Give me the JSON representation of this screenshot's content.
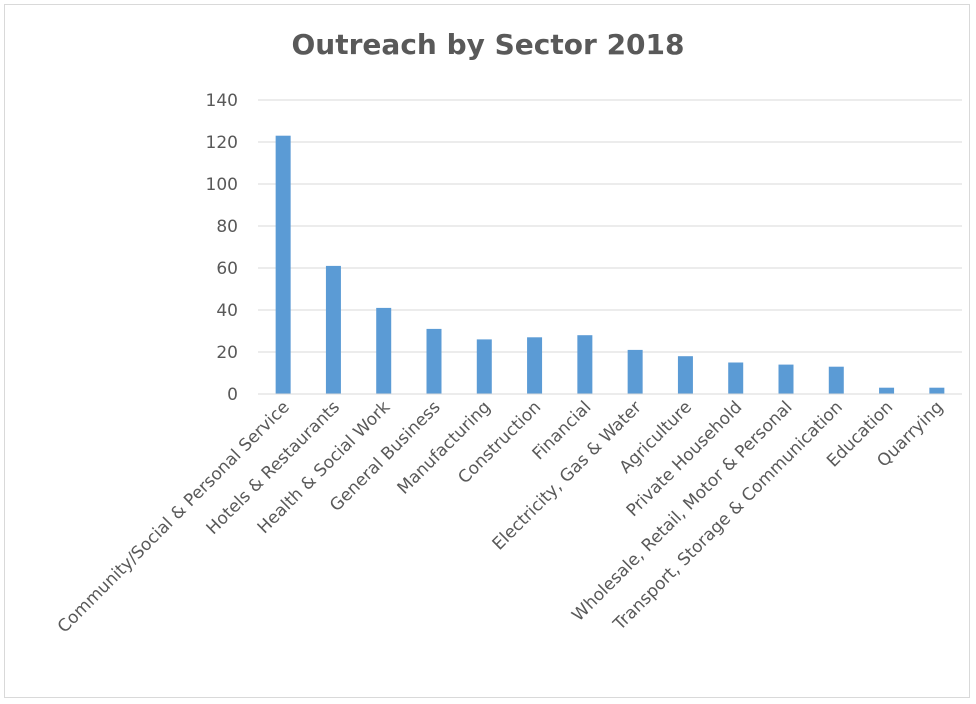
{
  "chart_data": {
    "type": "bar",
    "title": "Outreach by Sector 2018",
    "xlabel": "",
    "ylabel": "",
    "ylim": [
      0,
      140
    ],
    "yticks": [
      0,
      20,
      40,
      60,
      80,
      100,
      120,
      140
    ],
    "grid": true,
    "legend": "none",
    "bar_color": "#5b9bd5",
    "categories": [
      "Community/Social & Personal Service",
      "Hotels & Restaurants",
      "Health & Social Work",
      "General Business",
      "Manufacturing",
      "Construction",
      "Financial",
      "Electricity, Gas & Water",
      "Agriculture",
      "Private Household",
      "Wholesale, Retail, Motor & Personal",
      "Transport, Storage & Communication",
      "Education",
      "Quarrying"
    ],
    "values": [
      123,
      61,
      41,
      31,
      26,
      27,
      28,
      21,
      18,
      15,
      14,
      13,
      3,
      3
    ]
  }
}
